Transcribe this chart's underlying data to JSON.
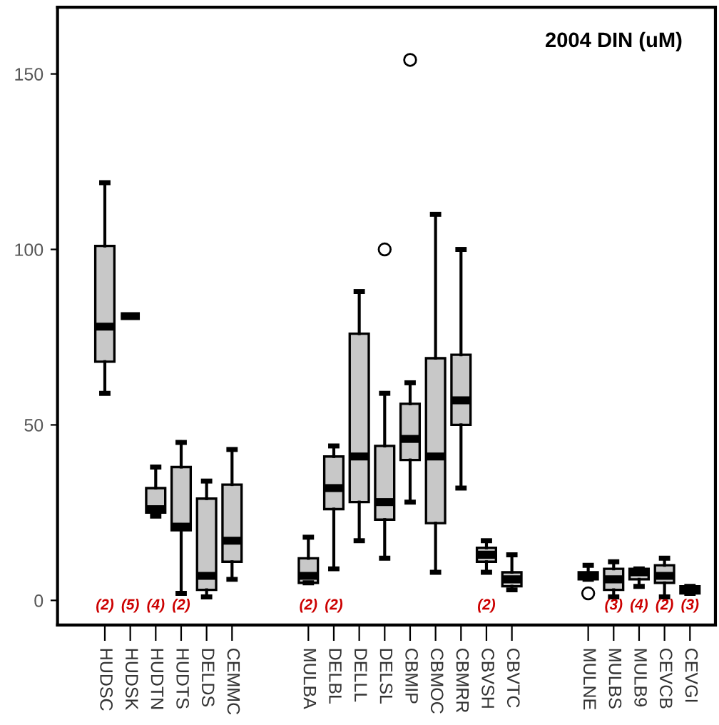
{
  "chart_data": {
    "type": "box",
    "title": "2004 DIN (uM)",
    "categories": [
      "HUDSC",
      "HUDSK",
      "HUDTN",
      "HUDTS",
      "DELDS",
      "CEMMC",
      null,
      null,
      "MULBA",
      "DELBL",
      "DELLL",
      "DELSL",
      "CBMIP",
      "CBMOC",
      "CBMRR",
      "CBVSH",
      "CBVTC",
      null,
      null,
      "MULNE",
      "MULBS",
      "MULB9",
      "CEVCB",
      "CEVGI"
    ],
    "color": "#c8c8c8",
    "boxes": [
      {
        "low": 59,
        "q1": 68,
        "median": 78,
        "q3": 101,
        "high": 119
      },
      {
        "low": 81,
        "q1": 81,
        "median": 81,
        "q3": 81,
        "high": 81
      },
      {
        "low": 24,
        "q1": 25,
        "median": 26,
        "q3": 32,
        "high": 38
      },
      {
        "low": 2,
        "q1": 20,
        "median": 21,
        "q3": 38,
        "high": 45
      },
      {
        "low": 1,
        "q1": 3,
        "median": 7,
        "q3": 29,
        "high": 34
      },
      {
        "low": 6,
        "q1": 11,
        "median": 17,
        "q3": 33,
        "high": 43
      },
      null,
      null,
      {
        "low": 5,
        "q1": 5,
        "median": 7,
        "q3": 12,
        "high": 18
      },
      {
        "low": 9,
        "q1": 26,
        "median": 32,
        "q3": 41,
        "high": 44
      },
      {
        "low": 17,
        "q1": 28,
        "median": 41,
        "q3": 76,
        "high": 88
      },
      {
        "low": 12,
        "q1": 23,
        "median": 28,
        "q3": 44,
        "high": 59,
        "outliers": [
          100
        ]
      },
      {
        "low": 28,
        "q1": 40,
        "median": 46,
        "q3": 56,
        "high": 62,
        "outliers": [
          154
        ]
      },
      {
        "low": 8,
        "q1": 22,
        "median": 41,
        "q3": 69,
        "high": 110
      },
      {
        "low": 32,
        "q1": 50,
        "median": 57,
        "q3": 70,
        "high": 100
      },
      {
        "low": 8,
        "q1": 11,
        "median": 13,
        "q3": 15,
        "high": 17
      },
      {
        "low": 3,
        "q1": 4,
        "median": 6,
        "q3": 8,
        "high": 13
      },
      null,
      null,
      {
        "low": 6,
        "q1": 6,
        "median": 7,
        "q3": 8,
        "high": 10,
        "outliers": [
          2
        ]
      },
      {
        "low": 1,
        "q1": 3,
        "median": 6,
        "q3": 9,
        "high": 11
      },
      {
        "low": 4,
        "q1": 6,
        "median": 8,
        "q3": 9,
        "high": 9
      },
      {
        "low": 1,
        "q1": 5,
        "median": 7,
        "q3": 10,
        "high": 12
      },
      {
        "low": 2,
        "q1": 2,
        "median": 3,
        "q3": 4,
        "high": 4
      }
    ],
    "ylim": [
      -7,
      169
    ],
    "yticks": [
      0,
      50,
      100,
      150
    ],
    "grid": false,
    "value_labels": [
      "(2)",
      "(5)",
      "(4)",
      "(2)",
      null,
      null,
      null,
      null,
      "(2)",
      "(2)",
      null,
      null,
      null,
      null,
      null,
      "(2)",
      null,
      null,
      null,
      null,
      "(3)",
      "(4)",
      "(2)",
      "(3)"
    ]
  }
}
